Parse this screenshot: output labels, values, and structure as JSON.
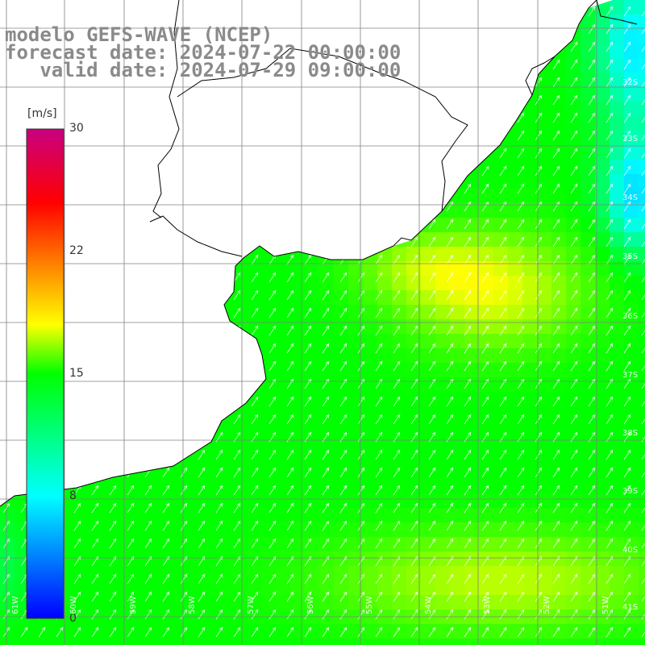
{
  "titles": {
    "line1": "modelo GEFS-WAVE (NCEP)",
    "line2": "forecast date: 2024-07-22 00:00:00",
    "line3": "   valid date: 2024-07-29 09:00:00"
  },
  "colorbar": {
    "unit": "[m/s]",
    "ticks": [
      {
        "value": 30,
        "label": "30"
      },
      {
        "value": 22,
        "label": "22"
      },
      {
        "value": 15,
        "label": "15"
      },
      {
        "value": 8,
        "label": "8"
      },
      {
        "value": 0,
        "label": "0"
      }
    ],
    "colors": [
      "#0000ff",
      "#00ffff",
      "#00ff00",
      "#ffff00",
      "#ff0000",
      "#c80080"
    ]
  },
  "lat_labels": [
    "32S",
    "33S",
    "34S",
    "35S",
    "36S",
    "37S",
    "38S",
    "39S",
    "40S",
    "41S"
  ],
  "lon_labels": [
    "61W",
    "60W",
    "59W",
    "58W",
    "57W",
    "56W",
    "55W",
    "54W",
    "53W",
    "52W",
    "51W"
  ],
  "colors": {
    "wind_vector": "#ffffff",
    "coastline": "#000000",
    "grid_line": "#808080",
    "title_text": "#8a8a8a"
  }
}
